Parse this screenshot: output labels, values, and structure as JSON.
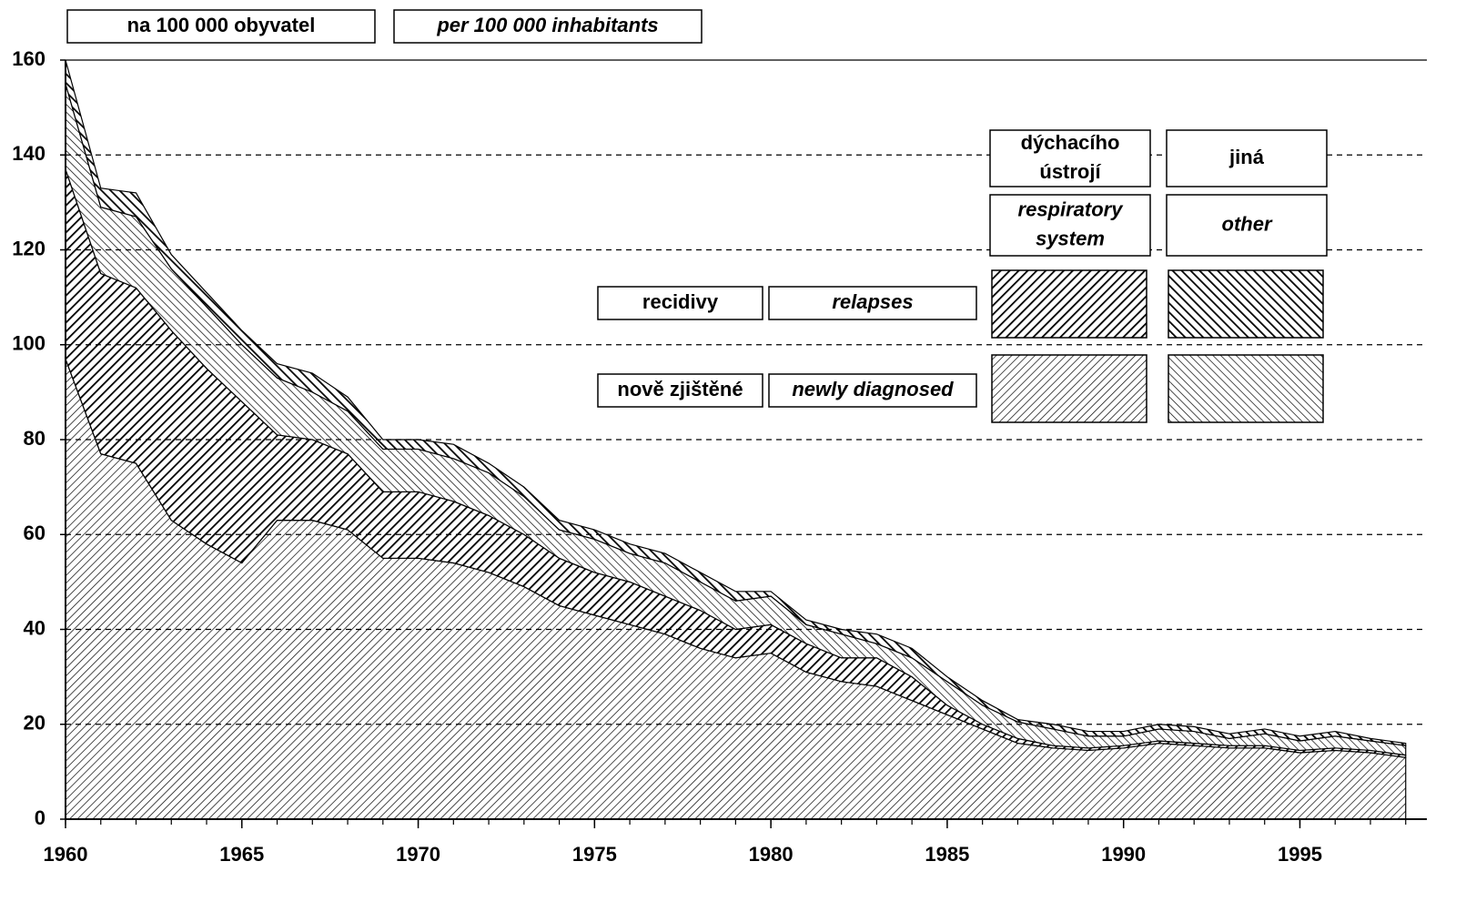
{
  "chart_data": {
    "type": "stacked_area",
    "header": [
      "na 100 000 obyvatel",
      "per 100 000 inhabitants"
    ],
    "legend": {
      "columns": [
        [
          "dýchacího ústrojí",
          "respiratory system"
        ],
        [
          "jiná",
          "other"
        ]
      ],
      "rows": [
        [
          "recidivy",
          "relapses"
        ],
        [
          "nově zjištěné",
          "newly diagnosed"
        ]
      ]
    },
    "x": [
      1960,
      1961,
      1962,
      1963,
      1964,
      1965,
      1966,
      1967,
      1968,
      1969,
      1970,
      1971,
      1972,
      1973,
      1974,
      1975,
      1976,
      1977,
      1978,
      1979,
      1980,
      1981,
      1982,
      1983,
      1984,
      1985,
      1986,
      1987,
      1988,
      1989,
      1990,
      1991,
      1992,
      1993,
      1994,
      1995,
      1996,
      1997,
      1998
    ],
    "series": [
      {
        "color": "#000000",
        "hatch": "/",
        "weight": "light",
        "values": [
          97,
          77,
          75,
          63,
          58,
          54,
          63,
          63,
          61,
          55,
          55,
          54,
          52,
          49,
          45,
          43,
          41,
          39,
          36,
          34,
          35,
          31,
          29,
          28,
          25,
          22,
          19,
          16,
          15,
          14.5,
          15,
          16,
          15.5,
          15,
          15,
          14,
          14.5,
          14,
          13
        ]
      },
      {
        "color": "#000000",
        "hatch": "/",
        "weight": "heavy",
        "values": [
          40,
          38,
          37,
          40,
          37,
          34,
          18,
          17,
          16,
          14,
          14,
          13,
          12,
          11,
          10,
          9,
          9,
          8,
          8,
          6,
          6,
          6,
          5,
          6,
          5,
          2,
          1,
          1,
          0.5,
          0.5,
          0.5,
          0.5,
          0.5,
          0.5,
          0.5,
          0.5,
          0.5,
          0.5,
          0.5
        ]
      },
      {
        "color": "#000000",
        "hatch": "\\",
        "weight": "light",
        "values": [
          18,
          14,
          15,
          13,
          13,
          12,
          12,
          10,
          9,
          9,
          9,
          9,
          9,
          8,
          6,
          7,
          6,
          7,
          6,
          6,
          6,
          4,
          5,
          3,
          4,
          5,
          4,
          3.5,
          3.5,
          2.5,
          2,
          2.5,
          2.5,
          1.5,
          2.5,
          2,
          2.5,
          2,
          2
        ]
      },
      {
        "color": "#000000",
        "hatch": "\\",
        "weight": "heavy",
        "values": [
          5,
          4,
          5,
          3,
          3,
          3,
          3,
          4,
          3,
          2,
          2,
          3,
          2,
          2,
          2,
          2,
          2,
          2,
          2,
          2,
          1,
          1,
          1,
          2,
          2,
          1,
          1,
          0.5,
          1,
          1,
          1,
          1,
          1,
          1,
          1,
          1,
          1,
          0.5,
          0.5
        ]
      }
    ],
    "xlim": [
      1960,
      1998.6
    ],
    "xticks": [
      1960,
      1965,
      1970,
      1975,
      1980,
      1985,
      1990,
      1995
    ],
    "ylim": [
      0,
      160
    ],
    "yticks": [
      0,
      20,
      40,
      60,
      80,
      100,
      120,
      140,
      160
    ],
    "grid": true
  }
}
